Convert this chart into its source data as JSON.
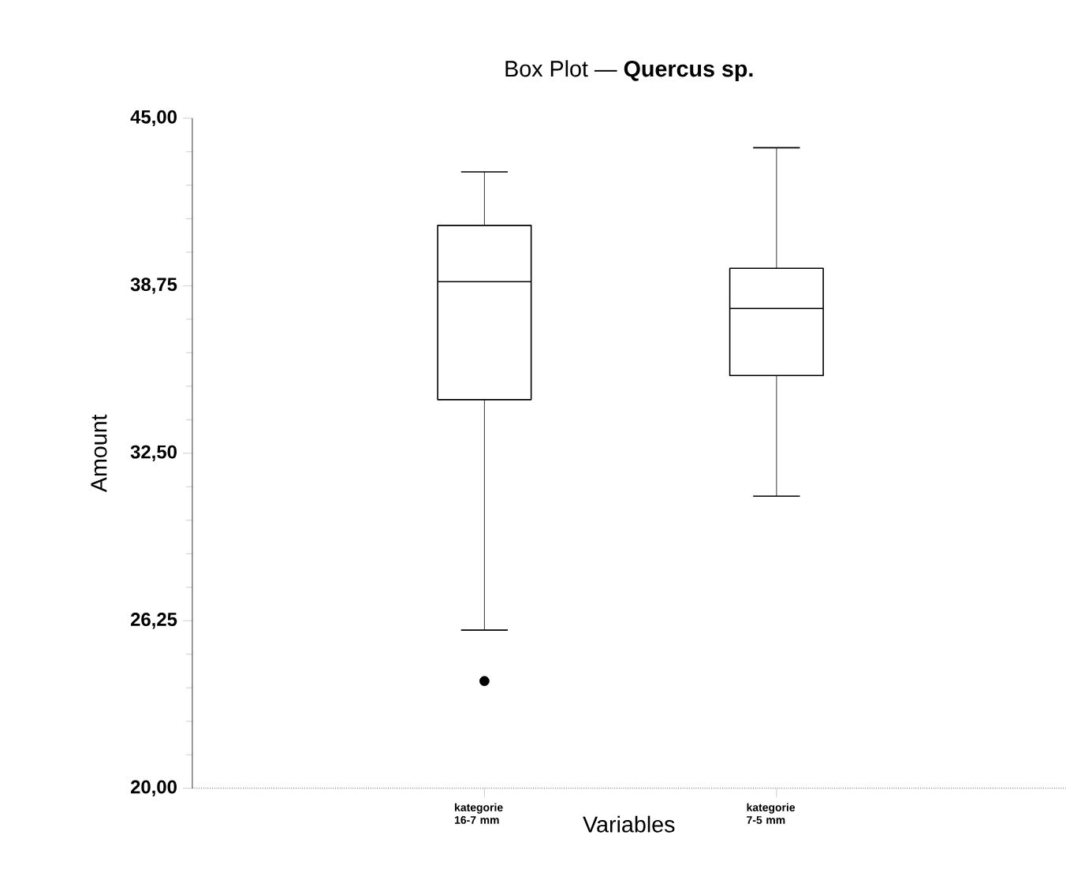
{
  "chart_data": {
    "type": "box",
    "title": "Box Plot — **Quercus sp.**",
    "xlabel": "Variables",
    "ylabel": "Amount",
    "categories": [
      "kategorie 16-7 mm",
      "kategorie 7-5 mm"
    ],
    "boxes": [
      {
        "low": 25.9,
        "q1": 34.5,
        "median": 38.9,
        "q3": 41.0,
        "high": 43.0,
        "outliers": [
          24.0
        ]
      },
      {
        "low": 30.9,
        "q1": 35.4,
        "median": 37.9,
        "q3": 39.4,
        "high": 43.9
      }
    ],
    "ylim": [
      20,
      45
    ],
    "yticks": [
      {
        "value": 20,
        "label": "20,00"
      },
      {
        "value": 26.25,
        "label": "26,25"
      },
      {
        "value": 32.5,
        "label": "32,50"
      },
      {
        "value": 38.75,
        "label": "38,75"
      },
      {
        "value": 45,
        "label": "45,00"
      }
    ]
  }
}
